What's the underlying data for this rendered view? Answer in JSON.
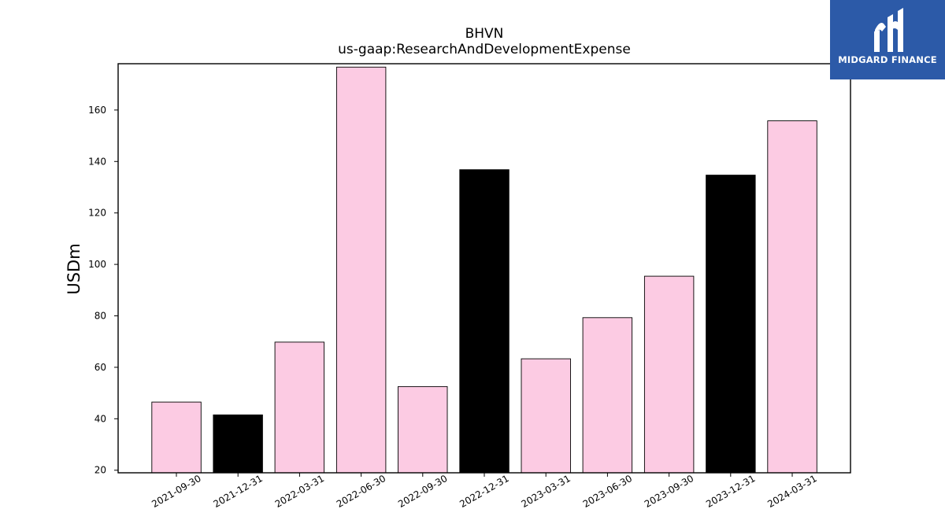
{
  "chart_data": {
    "type": "bar",
    "title": "BHVN",
    "subtitle": "us-gaap:ResearchAndDevelopmentExpense",
    "xlabel": "",
    "ylabel": "USDm",
    "ylim": [
      19,
      178
    ],
    "yticks": [
      20,
      40,
      60,
      80,
      100,
      120,
      140,
      160
    ],
    "categories": [
      "2021-09-30",
      "2021-12-31",
      "2022-03-31",
      "2022-06-30",
      "2022-09-30",
      "2022-12-31",
      "2023-03-31",
      "2023-06-30",
      "2023-09-30",
      "2023-12-31",
      "2024-03-31"
    ],
    "values": [
      46.5,
      41.5,
      69.8,
      176.7,
      52.5,
      136.8,
      63.3,
      79.3,
      95.4,
      134.7,
      155.8
    ],
    "bar_colors": [
      "#fccbe3",
      "#000000",
      "#fccbe3",
      "#fccbe3",
      "#fccbe3",
      "#000000",
      "#fccbe3",
      "#fccbe3",
      "#fccbe3",
      "#000000",
      "#fccbe3"
    ],
    "grid": false,
    "legend": "none"
  },
  "logo": {
    "text": "MIDGARD FINANCE",
    "background": "#2c5aa8",
    "icon": "midgard-logo-icon"
  }
}
